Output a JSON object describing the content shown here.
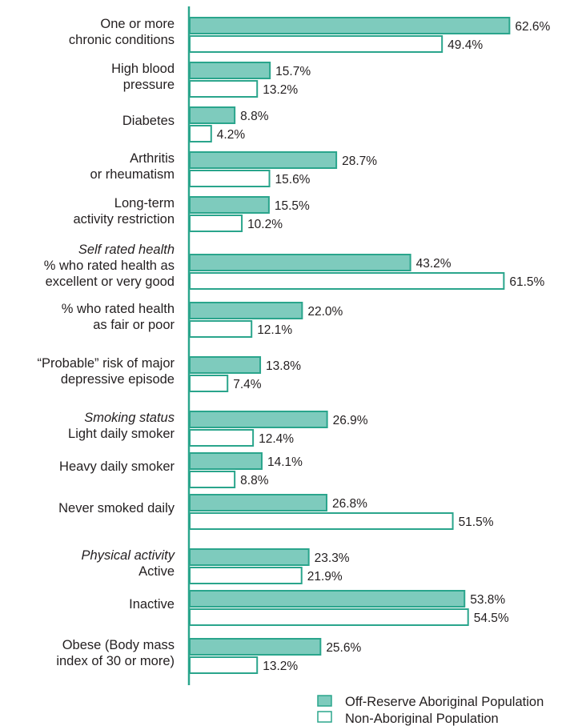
{
  "chart_data": {
    "type": "bar",
    "orientation": "horizontal",
    "grid": false,
    "legend_position": "bottom-right",
    "unit": "%",
    "categories": [
      {
        "lines": [
          "One or more",
          "chronic conditions"
        ],
        "italic_first": false
      },
      {
        "lines": [
          "High blood",
          "pressure"
        ],
        "italic_first": false
      },
      {
        "lines": [
          "Diabetes"
        ],
        "italic_first": false
      },
      {
        "lines": [
          "Arthritis",
          "or rheumatism"
        ],
        "italic_first": false
      },
      {
        "lines": [
          "Long-term",
          "activity restriction"
        ],
        "italic_first": false
      },
      {
        "lines": [
          "Self rated health",
          "% who rated health as",
          "excellent or very good"
        ],
        "italic_first": true
      },
      {
        "lines": [
          "% who rated health",
          "as fair or poor"
        ],
        "italic_first": false
      },
      {
        "lines": [
          "“Probable” risk of major",
          "depressive episode"
        ],
        "italic_first": false
      },
      {
        "lines": [
          "Smoking status",
          "Light daily smoker"
        ],
        "italic_first": true
      },
      {
        "lines": [
          "Heavy daily smoker"
        ],
        "italic_first": false
      },
      {
        "lines": [
          "Never smoked daily"
        ],
        "italic_first": false
      },
      {
        "lines": [
          "Physical activity",
          "Active"
        ],
        "italic_first": true
      },
      {
        "lines": [
          "Inactive"
        ],
        "italic_first": false
      },
      {
        "lines": [
          "Obese (Body mass",
          "index of 30 or more)"
        ],
        "italic_first": false
      }
    ],
    "series": [
      {
        "name": "Off-Reserve Aboriginal Population",
        "color": "#7ecbbd",
        "values": [
          62.6,
          15.7,
          8.8,
          28.7,
          15.5,
          43.2,
          22.0,
          13.8,
          26.9,
          14.1,
          26.8,
          23.3,
          53.8,
          25.6
        ],
        "labels": [
          "62.6%",
          "15.7%",
          "8.8%",
          "28.7%",
          "15.5%",
          "43.2%",
          "22.0%",
          "13.8%",
          "26.9%",
          "14.1%",
          "26.8%",
          "23.3%",
          "53.8%",
          "25.6%"
        ]
      },
      {
        "name": "Non-Aboriginal Population",
        "color": "#ffffff",
        "values": [
          49.4,
          13.2,
          4.2,
          15.6,
          10.2,
          61.5,
          12.1,
          7.4,
          12.4,
          8.8,
          51.5,
          21.9,
          54.5,
          13.2
        ],
        "labels": [
          "49.4%",
          "13.2%",
          "4.2%",
          "15.6%",
          "10.2%",
          "61.5%",
          "12.1%",
          "7.4%",
          "12.4%",
          "8.8%",
          "51.5%",
          "21.9%",
          "54.5%",
          "13.2%"
        ]
      }
    ],
    "xlim": [
      0,
      70
    ],
    "stroke_color": "#2aa58c"
  }
}
